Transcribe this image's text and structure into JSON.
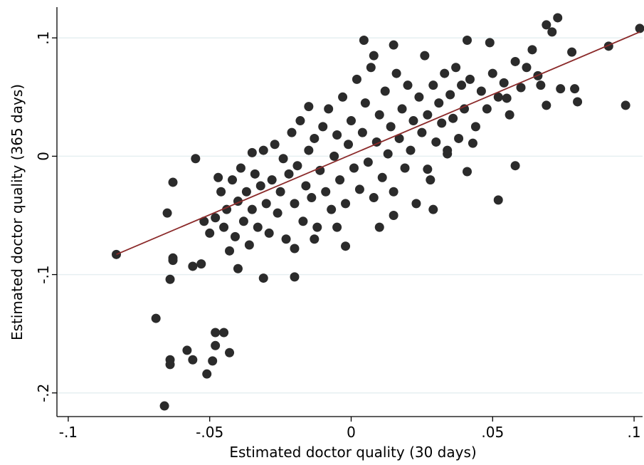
{
  "chart_data": {
    "type": "scatter",
    "xlabel": "Estimated doctor quality (30 days)",
    "ylabel": "Estimated doctor quality (365 days)",
    "color": "#2b2b2b",
    "grid": true,
    "xlim": [
      -0.104,
      0.103
    ],
    "ylim": [
      -0.22,
      0.126
    ],
    "xticks": [
      {
        "value": -0.1,
        "label": "-.1"
      },
      {
        "value": -0.05,
        "label": "-.05"
      },
      0,
      {
        "value": 0.05,
        "label": ".05"
      },
      {
        "value": 0.1,
        "label": ".1"
      }
    ],
    "yticks": [
      {
        "value": -0.2,
        "label": "-.2"
      },
      {
        "value": -0.1,
        "label": "-.1"
      },
      0,
      {
        "value": 0.1,
        "label": ".1"
      }
    ],
    "fit_line": {
      "color": "#8b2a2a",
      "x": [
        -0.083,
        0.102
      ],
      "y": [
        -0.083,
        0.105
      ]
    },
    "x": [
      -0.083,
      -0.069,
      -0.066,
      -0.064,
      -0.064,
      -0.058,
      -0.056,
      -0.051,
      -0.048,
      -0.045,
      -0.048,
      -0.049,
      -0.043,
      -0.064,
      -0.063,
      -0.065,
      -0.063,
      -0.063,
      -0.056,
      -0.053,
      -0.04,
      -0.031,
      -0.02,
      -0.055,
      0.0045,
      0.015,
      0.041,
      0.049,
      0.073,
      0.069,
      0.071,
      0.102,
      0.091,
      0.097,
      0.052,
      0.058,
      0.08,
      0.079,
      0.074,
      0.078,
      0.067,
      0.069,
      0.055,
      0.029,
      -0.002,
      -0.013,
      0.027,
      0.041,
      0.034,
      0.043,
      0.015,
      0.01,
      -0.048,
      -0.046,
      -0.045,
      -0.044,
      -0.042,
      -0.041,
      -0.04,
      -0.039,
      -0.038,
      -0.037,
      -0.036,
      -0.035,
      -0.034,
      -0.033,
      -0.032,
      -0.031,
      -0.03,
      -0.029,
      -0.028,
      -0.027,
      -0.026,
      -0.025,
      -0.024,
      -0.023,
      -0.022,
      -0.021,
      -0.02,
      -0.019,
      -0.018,
      -0.017,
      -0.016,
      -0.015,
      -0.014,
      -0.013,
      -0.012,
      -0.011,
      -0.01,
      -0.009,
      -0.008,
      -0.007,
      -0.006,
      -0.005,
      -0.004,
      -0.003,
      -0.002,
      -0.001,
      0.0,
      0.001,
      0.002,
      0.003,
      0.004,
      0.005,
      0.006,
      0.007,
      0.008,
      0.009,
      0.01,
      0.011,
      0.012,
      0.013,
      0.014,
      0.015,
      0.016,
      0.017,
      0.018,
      0.019,
      0.02,
      0.021,
      0.022,
      0.023,
      0.024,
      0.025,
      0.026,
      0.027,
      0.028,
      0.029,
      0.03,
      0.031,
      0.032,
      0.033,
      0.034,
      0.035,
      0.036,
      0.037,
      0.038,
      0.039,
      0.04,
      0.042,
      0.044,
      0.046,
      0.048,
      0.05,
      0.052,
      0.054,
      0.056,
      0.058,
      0.06,
      0.062,
      0.064,
      0.066,
      -0.052,
      -0.05,
      -0.047,
      -0.043,
      -0.02,
      -0.005,
      0.008,
      -0.015,
      -0.035
    ],
    "y": [
      -0.083,
      -0.137,
      -0.211,
      -0.172,
      -0.176,
      -0.164,
      -0.172,
      -0.184,
      -0.149,
      -0.149,
      -0.16,
      -0.173,
      -0.166,
      -0.104,
      -0.022,
      -0.048,
      -0.086,
      -0.088,
      -0.093,
      -0.091,
      -0.095,
      -0.103,
      -0.102,
      -0.002,
      0.098,
      0.094,
      0.098,
      0.096,
      0.117,
      0.111,
      0.105,
      0.108,
      0.093,
      0.043,
      -0.037,
      -0.008,
      0.046,
      0.057,
      0.057,
      0.088,
      0.06,
      0.043,
      0.049,
      -0.045,
      -0.076,
      -0.07,
      -0.011,
      -0.013,
      0.002,
      0.011,
      -0.05,
      -0.06,
      -0.052,
      -0.03,
      -0.06,
      -0.045,
      -0.02,
      -0.068,
      -0.038,
      -0.01,
      -0.055,
      -0.03,
      -0.075,
      -0.045,
      -0.015,
      -0.06,
      -0.025,
      0.005,
      -0.04,
      -0.065,
      -0.02,
      0.01,
      -0.048,
      -0.03,
      -0.002,
      -0.07,
      -0.015,
      0.02,
      -0.04,
      -0.008,
      0.03,
      -0.055,
      -0.025,
      0.005,
      -0.035,
      0.015,
      -0.06,
      -0.012,
      0.025,
      -0.03,
      0.04,
      -0.045,
      0.0,
      0.018,
      -0.02,
      0.05,
      -0.04,
      0.01,
      0.03,
      -0.01,
      0.065,
      -0.028,
      0.02,
      0.045,
      -0.005,
      0.075,
      -0.035,
      0.012,
      0.035,
      -0.018,
      0.055,
      0.002,
      0.025,
      -0.03,
      0.07,
      0.015,
      0.04,
      -0.01,
      0.06,
      0.005,
      0.03,
      -0.04,
      0.05,
      0.02,
      0.085,
      0.035,
      -0.02,
      0.06,
      0.012,
      0.045,
      0.028,
      0.07,
      0.005,
      0.052,
      0.032,
      0.075,
      0.015,
      0.06,
      0.04,
      0.065,
      0.025,
      0.055,
      0.04,
      0.07,
      0.05,
      0.062,
      0.035,
      0.08,
      0.058,
      0.075,
      0.09,
      0.068,
      -0.055,
      -0.065,
      -0.018,
      -0.08,
      -0.078,
      -0.06,
      0.085,
      0.042,
      0.003
    ]
  }
}
